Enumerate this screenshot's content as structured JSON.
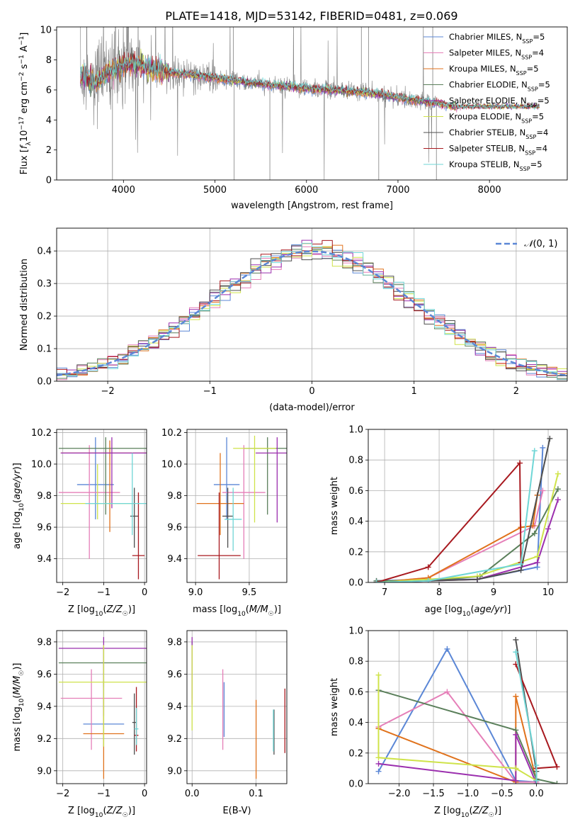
{
  "title": "PLATE=1418, MJD=53142, FIBERID=0481, z=0.069",
  "colors": {
    "chabrier_miles": "#5b87d6",
    "salpeter_miles": "#e57fb8",
    "kroupa_miles": "#e0721c",
    "chabrier_elodie": "#5a7f5a",
    "salpeter_elodie": "#9b2fae",
    "kroupa_elodie": "#cfe34a",
    "chabrier_stelib": "#4f4f4f",
    "salpeter_stelib": "#a8191f",
    "kroupa_stelib": "#6fd6d6",
    "data": "#7f7f7f",
    "normal": "#5b87d6",
    "grid": "#b0b0b0"
  },
  "chart_data": [
    {
      "id": "spectrum",
      "type": "line",
      "xlabel": "wavelength [Angstrom, rest frame]",
      "ylabel": "Flux [f_λ10^-17 erg cm^-2 s^-1 A^-1]",
      "xlim": [
        3270,
        8850
      ],
      "ylim": [
        0,
        10.2
      ],
      "xticks": [
        4000,
        5000,
        6000,
        7000,
        8000
      ],
      "yticks": [
        0,
        2,
        4,
        6,
        8,
        10
      ],
      "legend_position": "top-right",
      "legend": [
        "Chabrier MILES, N_SSP=5",
        "Salpeter MILES, N_SSP=4",
        "Kroupa MILES, N_SSP=5",
        "Chabrier ELODIE, N_SSP=5",
        "Salpeter ELODIE, N_SSP=5",
        "Kroupa ELODIE, N_SSP=5",
        "Chabrier STELIB, N_SSP=4",
        "Salpeter STELIB, N_SSP=4",
        "Kroupa STELIB, N_SSP=5"
      ],
      "continuum": {
        "x": [
          3550,
          3700,
          3900,
          4100,
          4300,
          4600,
          5000,
          5500,
          6000,
          6500,
          6800,
          7000,
          7200,
          7400,
          7600
        ],
        "y": [
          7.0,
          6.5,
          7.4,
          7.8,
          7.4,
          7.1,
          6.8,
          6.4,
          6.1,
          5.9,
          5.7,
          5.5,
          5.3,
          5.1,
          4.9
        ]
      },
      "data_range": [
        3530,
        7430
      ],
      "model_range": [
        3530,
        8550
      ]
    },
    {
      "id": "residuals",
      "type": "histogram",
      "xlabel": "(data-model)/error",
      "ylabel": "Normed distribution",
      "xlim": [
        -2.5,
        2.5
      ],
      "ylim": [
        0,
        0.47
      ],
      "xticks": [
        -2,
        -1,
        0,
        1,
        2
      ],
      "yticks": [
        0,
        0.1,
        0.2,
        0.3,
        0.4
      ],
      "bin_width": 0.1,
      "legend": "N(0,1)",
      "legend_position": "top-right"
    },
    {
      "id": "Z_age",
      "type": "errorbar",
      "xlabel": "Z [log10(Z/Z☉)]",
      "ylabel": "age [log10(age/yr)]",
      "xlim": [
        -2.15,
        0.05
      ],
      "ylim": [
        9.25,
        10.22
      ],
      "xticks": [
        -2,
        -1,
        0
      ],
      "yticks": [
        9.4,
        9.6,
        9.8,
        10.0,
        10.2
      ],
      "points": [
        {
          "x": -1.2,
          "xerr": [
            0.45,
            0.45
          ],
          "y": 9.87,
          "yerr": [
            0.22,
            0.3
          ]
        },
        {
          "x": -1.35,
          "xerr": [
            0.75,
            0.75
          ],
          "y": 9.82,
          "yerr": [
            0.42,
            0.3
          ]
        },
        {
          "x": -0.85,
          "xerr": [
            1.2,
            1.2
          ],
          "y": 10.07,
          "yerr": [
            0.5,
            0.08
          ]
        },
        {
          "x": -0.95,
          "xerr": [
            1.15,
            1.15
          ],
          "y": 10.1,
          "yerr": [
            0.42,
            0.07
          ]
        },
        {
          "x": -0.8,
          "xerr": [
            1.25,
            1.25
          ],
          "y": 10.07,
          "yerr": [
            0.35,
            0.1
          ]
        },
        {
          "x": -1.15,
          "xerr": [
            0.9,
            0.9
          ],
          "y": 9.75,
          "yerr": [
            0.1,
            0.25
          ]
        },
        {
          "x": -0.25,
          "xerr": [
            0.1,
            0.1
          ],
          "y": 9.67,
          "yerr": [
            0.2,
            0.18
          ]
        },
        {
          "x": -0.15,
          "xerr": [
            0.15,
            0.15
          ],
          "y": 9.42,
          "yerr": [
            0.15,
            0.4
          ]
        },
        {
          "x": -0.3,
          "xerr": [
            1.15,
            1.15
          ],
          "y": 9.75,
          "yerr": [
            0.2,
            0.32
          ]
        }
      ]
    },
    {
      "id": "mass_age",
      "type": "errorbar",
      "xlabel": "mass [log10(M/M☉)]",
      "ylabel": "",
      "xlim": [
        8.92,
        9.85
      ],
      "ylim": [
        9.25,
        10.22
      ],
      "xticks": [
        9.0,
        9.5
      ],
      "yticks": [
        9.4,
        9.6,
        9.8,
        10.0,
        10.2
      ],
      "points": [
        {
          "x": 9.29,
          "xerr": [
            0.12,
            0.12
          ],
          "y": 9.87,
          "yerr": [
            0.22,
            0.3
          ]
        },
        {
          "x": 9.45,
          "xerr": [
            0.2,
            0.2
          ],
          "y": 9.82,
          "yerr": [
            0.42,
            0.3
          ]
        },
        {
          "x": 9.23,
          "xerr": [
            0.22,
            0.22
          ],
          "y": 9.75,
          "yerr": [
            0.2,
            0.32
          ]
        },
        {
          "x": 9.67,
          "xerr": [
            0.22,
            0.22
          ],
          "y": 10.1,
          "yerr": [
            0.42,
            0.07
          ]
        },
        {
          "x": 9.76,
          "xerr": [
            0.2,
            0.2
          ],
          "y": 10.07,
          "yerr": [
            0.44,
            0.1
          ]
        },
        {
          "x": 9.55,
          "xerr": [
            0.2,
            0.2
          ],
          "y": 10.1,
          "yerr": [
            0.47,
            0.08
          ]
        },
        {
          "x": 9.3,
          "xerr": [
            0.05,
            0.05
          ],
          "y": 9.67,
          "yerr": [
            0.2,
            0.18
          ]
        },
        {
          "x": 9.22,
          "xerr": [
            0.2,
            0.2
          ],
          "y": 9.42,
          "yerr": [
            0.15,
            0.4
          ]
        },
        {
          "x": 9.35,
          "xerr": [
            0.08,
            0.08
          ],
          "y": 9.65,
          "yerr": [
            0.2,
            0.2
          ]
        }
      ]
    },
    {
      "id": "age_weight",
      "type": "line",
      "xlabel": "age [log10(age/yr)]",
      "ylabel": "mass weight",
      "xlim": [
        6.7,
        10.35
      ],
      "ylim": [
        0,
        1.0
      ],
      "xticks": [
        7,
        8,
        9,
        10
      ],
      "yticks": [
        0.0,
        0.2,
        0.4,
        0.6,
        0.8,
        1.0
      ],
      "series": [
        {
          "x": [
            6.85,
            7.8,
            8.7,
            9.8,
            9.9
          ],
          "y": [
            0.01,
            0.02,
            0.02,
            0.1,
            0.88
          ]
        },
        {
          "x": [
            6.85,
            7.8,
            9.75,
            9.9
          ],
          "y": [
            0.0,
            0.03,
            0.37,
            0.6
          ]
        },
        {
          "x": [
            6.85,
            7.8,
            9.5,
            9.72,
            9.8
          ],
          "y": [
            0.0,
            0.03,
            0.36,
            0.37,
            0.57
          ]
        },
        {
          "x": [
            6.85,
            7.8,
            8.75,
            9.75,
            10.18
          ],
          "y": [
            0.01,
            0.01,
            0.04,
            0.32,
            0.61
          ]
        },
        {
          "x": [
            6.85,
            8.7,
            9.8,
            10.0,
            10.18
          ],
          "y": [
            0.0,
            0.02,
            0.13,
            0.35,
            0.54
          ]
        },
        {
          "x": [
            6.85,
            8.7,
            9.8,
            10.18
          ],
          "y": [
            0.0,
            0.04,
            0.17,
            0.71
          ]
        },
        {
          "x": [
            6.85,
            8.7,
            9.5,
            10.03
          ],
          "y": [
            0.0,
            0.02,
            0.08,
            0.94
          ]
        },
        {
          "x": [
            6.85,
            7.8,
            9.48,
            9.5
          ],
          "y": [
            0.0,
            0.1,
            0.78,
            0.13
          ]
        },
        {
          "x": [
            6.85,
            7.8,
            9.5,
            9.75
          ],
          "y": [
            0.0,
            0.01,
            0.12,
            0.86
          ]
        }
      ]
    },
    {
      "id": "Z_mass",
      "type": "errorbar",
      "xlabel": "Z [log10(Z/Z☉)]",
      "ylabel": "mass [log10(M/M☉)]",
      "xlim": [
        -2.15,
        0.05
      ],
      "ylim": [
        8.92,
        9.87
      ],
      "xticks": [
        -2,
        -1,
        0
      ],
      "yticks": [
        9.0,
        9.2,
        9.4,
        9.6,
        9.8
      ],
      "points": [
        {
          "x": -1.0,
          "xerr": [
            0.5,
            0.5
          ],
          "y": 9.29,
          "yerr": [
            0.14,
            0.27
          ]
        },
        {
          "x": -1.3,
          "xerr": [
            0.75,
            0.75
          ],
          "y": 9.45,
          "yerr": [
            0.32,
            0.18
          ]
        },
        {
          "x": -1.0,
          "xerr": [
            0.5,
            0.5
          ],
          "y": 9.23,
          "yerr": [
            0.28,
            0.22
          ]
        },
        {
          "x": -1.0,
          "xerr": [
            1.1,
            1.1
          ],
          "y": 9.67,
          "yerr": [
            0.15,
            0.1
          ]
        },
        {
          "x": -1.0,
          "xerr": [
            1.1,
            1.1
          ],
          "y": 9.76,
          "yerr": [
            0.42,
            0.07
          ]
        },
        {
          "x": -1.0,
          "xerr": [
            1.1,
            1.1
          ],
          "y": 9.55,
          "yerr": [
            0.4,
            0.23
          ]
        },
        {
          "x": -0.25,
          "xerr": [
            0.05,
            0.05
          ],
          "y": 9.3,
          "yerr": [
            0.2,
            0.18
          ]
        },
        {
          "x": -0.2,
          "xerr": [
            0.05,
            0.05
          ],
          "y": 9.22,
          "yerr": [
            0.1,
            0.3
          ]
        },
        {
          "x": -0.2,
          "xerr": [
            0.05,
            0.05
          ],
          "y": 9.26,
          "yerr": [
            0.1,
            0.13
          ]
        }
      ]
    },
    {
      "id": "EBV_mass",
      "type": "errorbar",
      "xlabel": "E(B-V)",
      "ylabel": "",
      "xlim": [
        -0.008,
        0.148
      ],
      "ylim": [
        8.92,
        9.87
      ],
      "xticks": [
        0.0,
        0.1
      ],
      "yticks": [
        9.0,
        9.2,
        9.4,
        9.6,
        9.8
      ],
      "points": [
        {
          "x": 0.05,
          "y": 9.35,
          "yerr": [
            0.14,
            0.2
          ]
        },
        {
          "x": 0.048,
          "y": 9.45,
          "yerr": [
            0.32,
            0.18
          ]
        },
        {
          "x": 0.1,
          "y": 9.2,
          "yerr": [
            0.25,
            0.24
          ]
        },
        {
          "x": 0.0,
          "y": 9.7,
          "yerr": [
            0.25,
            0.1
          ]
        },
        {
          "x": 0.0,
          "y": 9.76,
          "yerr": [
            0.35,
            0.07
          ]
        },
        {
          "x": 0.0,
          "y": 9.55,
          "yerr": [
            0.3,
            0.23
          ]
        },
        {
          "x": 0.128,
          "y": 9.3,
          "yerr": [
            0.2,
            0.08
          ]
        },
        {
          "x": 0.145,
          "y": 9.22,
          "yerr": [
            0.11,
            0.29
          ]
        },
        {
          "x": 0.127,
          "y": 9.26,
          "yerr": [
            0.14,
            0.12
          ]
        }
      ]
    },
    {
      "id": "Z_weight",
      "type": "line",
      "xlabel": "Z [log10(Z/Z☉)]",
      "ylabel": "mass weight",
      "xlim": [
        -2.45,
        0.45
      ],
      "ylim": [
        0,
        1.0
      ],
      "xticks": [
        -2.0,
        -1.5,
        -1.0,
        -0.5,
        0.0
      ],
      "yticks": [
        0.0,
        0.2,
        0.4,
        0.6,
        0.8,
        1.0
      ],
      "series": [
        {
          "x": [
            -2.3,
            -1.3,
            -0.3,
            0.0
          ],
          "y": [
            0.08,
            0.88,
            0.02,
            0.01
          ]
        },
        {
          "x": [
            -2.3,
            -1.3,
            -0.3,
            0.0
          ],
          "y": [
            0.37,
            0.6,
            0.01,
            0.01
          ]
        },
        {
          "x": [
            -2.3,
            -0.3,
            -0.3,
            0.0
          ],
          "y": [
            0.36,
            0.01,
            0.57,
            0.02
          ]
        },
        {
          "x": [
            -2.3,
            -0.3,
            0.0,
            0.3
          ],
          "y": [
            0.61,
            0.35,
            0.03,
            0.0
          ]
        },
        {
          "x": [
            -2.3,
            -0.3,
            -0.3,
            0.0
          ],
          "y": [
            0.13,
            0.02,
            0.32,
            0.0
          ]
        },
        {
          "x": [
            -2.3,
            -2.3,
            -0.3,
            0.0
          ],
          "y": [
            0.71,
            0.17,
            0.1,
            0.02
          ]
        },
        {
          "x": [
            -0.3,
            0.0,
            0.0
          ],
          "y": [
            0.94,
            0.08,
            0.02
          ]
        },
        {
          "x": [
            0.0,
            0.3,
            -0.3
          ],
          "y": [
            0.1,
            0.11,
            0.78
          ]
        },
        {
          "x": [
            -0.3,
            0.0,
            0.0
          ],
          "y": [
            0.86,
            0.12,
            0.02
          ]
        }
      ]
    }
  ]
}
